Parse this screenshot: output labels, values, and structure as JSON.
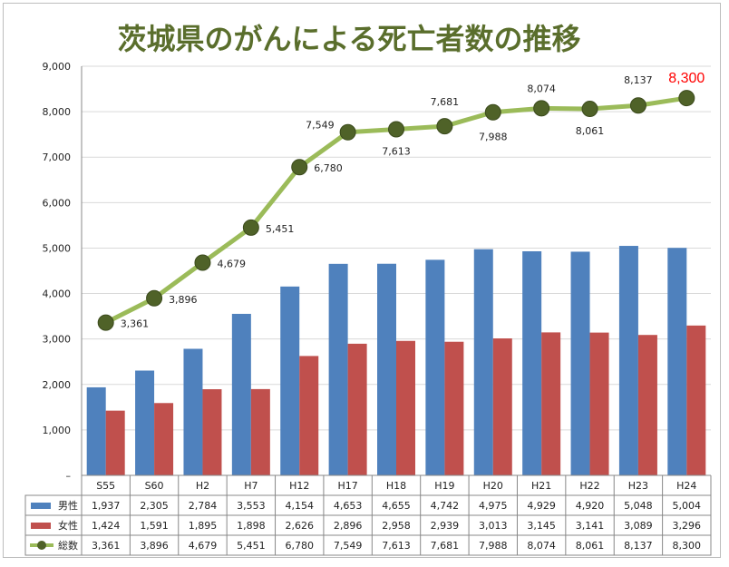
{
  "chart_data": {
    "type": "bar",
    "title": "茨城県のがんによる死亡者数の推移",
    "categories": [
      "S55",
      "S60",
      "H2",
      "H7",
      "H12",
      "H17",
      "H18",
      "H19",
      "H20",
      "H21",
      "H22",
      "H23",
      "H24"
    ],
    "ylim": [
      0,
      9000
    ],
    "yticks": [
      0,
      1000,
      2000,
      3000,
      4000,
      5000,
      6000,
      7000,
      8000,
      9000
    ],
    "ytick_labels": [
      "–",
      "1,000",
      "2,000",
      "3,000",
      "4,000",
      "5,000",
      "6,000",
      "7,000",
      "8,000",
      "9,000"
    ],
    "series": [
      {
        "name": "男性",
        "kind": "bar",
        "color": "#4f81bd",
        "values": [
          1937,
          2305,
          2784,
          3553,
          4154,
          4653,
          4655,
          4742,
          4975,
          4929,
          4920,
          5048,
          5004
        ],
        "labels": [
          "1,937",
          "2,305",
          "2,784",
          "3,553",
          "4,154",
          "4,653",
          "4,655",
          "4,742",
          "4,975",
          "4,929",
          "4,920",
          "5,048",
          "5,004"
        ]
      },
      {
        "name": "女性",
        "kind": "bar",
        "color": "#c0504d",
        "values": [
          1424,
          1591,
          1895,
          1898,
          2626,
          2896,
          2958,
          2939,
          3013,
          3145,
          3141,
          3089,
          3296
        ],
        "labels": [
          "1,424",
          "1,591",
          "1,895",
          "1,898",
          "2,626",
          "2,896",
          "2,958",
          "2,939",
          "3,013",
          "3,145",
          "3,141",
          "3,089",
          "3,296"
        ]
      },
      {
        "name": "総数",
        "kind": "line",
        "color": "#9bbb59",
        "marker_color": "#4f6228",
        "values": [
          3361,
          3896,
          4679,
          5451,
          6780,
          7549,
          7613,
          7681,
          7988,
          8074,
          8061,
          8137,
          8300
        ],
        "labels": [
          "3,361",
          "3,896",
          "4,679",
          "5,451",
          "6,780",
          "7,549",
          "7,613",
          "7,681",
          "7,988",
          "8,074",
          "8,061",
          "8,137",
          "8,300"
        ]
      }
    ],
    "highlight": {
      "text": "8,300",
      "color": "#ff0000"
    },
    "legend": "data-table"
  }
}
